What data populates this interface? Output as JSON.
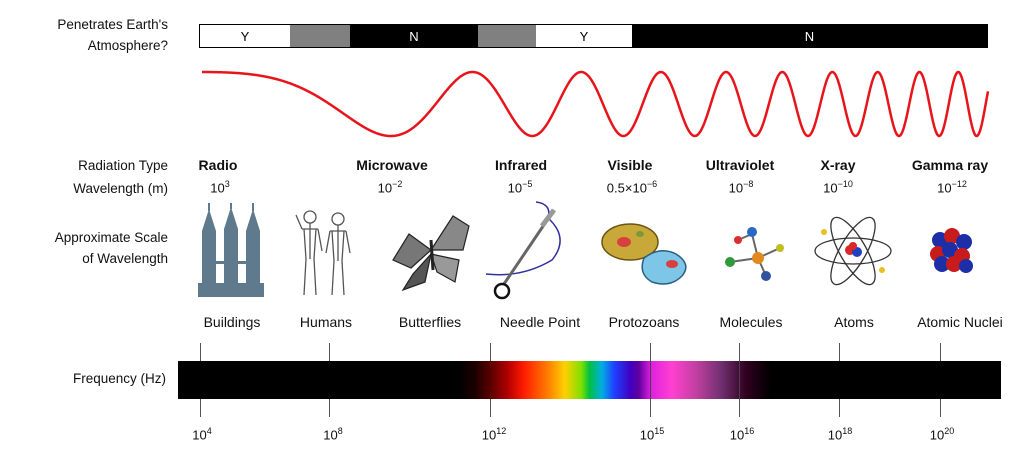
{
  "labels": {
    "atmosphere": [
      "Penetrates Earth's",
      "Atmosphere?"
    ],
    "radiation_type": "Radiation Type",
    "wavelength": "Wavelength (m)",
    "scale": [
      "Approximate Scale",
      "of Wavelength"
    ],
    "frequency": "Frequency (Hz)"
  },
  "atmosphere_bar": {
    "segments": [
      {
        "label": "Y",
        "color": "white"
      },
      {
        "label": "",
        "color": "gray"
      },
      {
        "label": "N",
        "color": "black"
      },
      {
        "label": "",
        "color": "gray"
      },
      {
        "label": "Y",
        "color": "white"
      },
      {
        "label": "N",
        "color": "black"
      }
    ]
  },
  "bands": [
    {
      "name": "Radio",
      "base": "10",
      "exp": "3"
    },
    {
      "name": "Microwave",
      "base": "10",
      "exp": "−2"
    },
    {
      "name": "Infrared",
      "base": "10",
      "exp": "−5"
    },
    {
      "name": "Visible",
      "base": "0.5×10",
      "exp": "−6"
    },
    {
      "name": "Ultraviolet",
      "base": "10",
      "exp": "−8"
    },
    {
      "name": "X-ray",
      "base": "10",
      "exp": "−10"
    },
    {
      "name": "Gamma ray",
      "base": "10",
      "exp": "−12"
    }
  ],
  "scale_objects": [
    "Buildings",
    "Humans",
    "Butterflies",
    "Needle Point",
    "Protozoans",
    "Molecules",
    "Atoms",
    "Atomic Nuclei"
  ],
  "frequency_ticks": [
    {
      "base": "10",
      "exp": "4"
    },
    {
      "base": "10",
      "exp": "8"
    },
    {
      "base": "10",
      "exp": "12"
    },
    {
      "base": "10",
      "exp": "15"
    },
    {
      "base": "10",
      "exp": "16"
    },
    {
      "base": "10",
      "exp": "18"
    },
    {
      "base": "10",
      "exp": "20"
    }
  ],
  "colors": {
    "wave": "#e8141b",
    "bar_black": "#000000",
    "bar_gray": "#808080"
  },
  "icons": [
    "buildings-icon",
    "humans-icon",
    "butterfly-icon",
    "needle-icon",
    "protozoa-icon",
    "molecule-icon",
    "atom-icon",
    "nucleus-icon"
  ]
}
